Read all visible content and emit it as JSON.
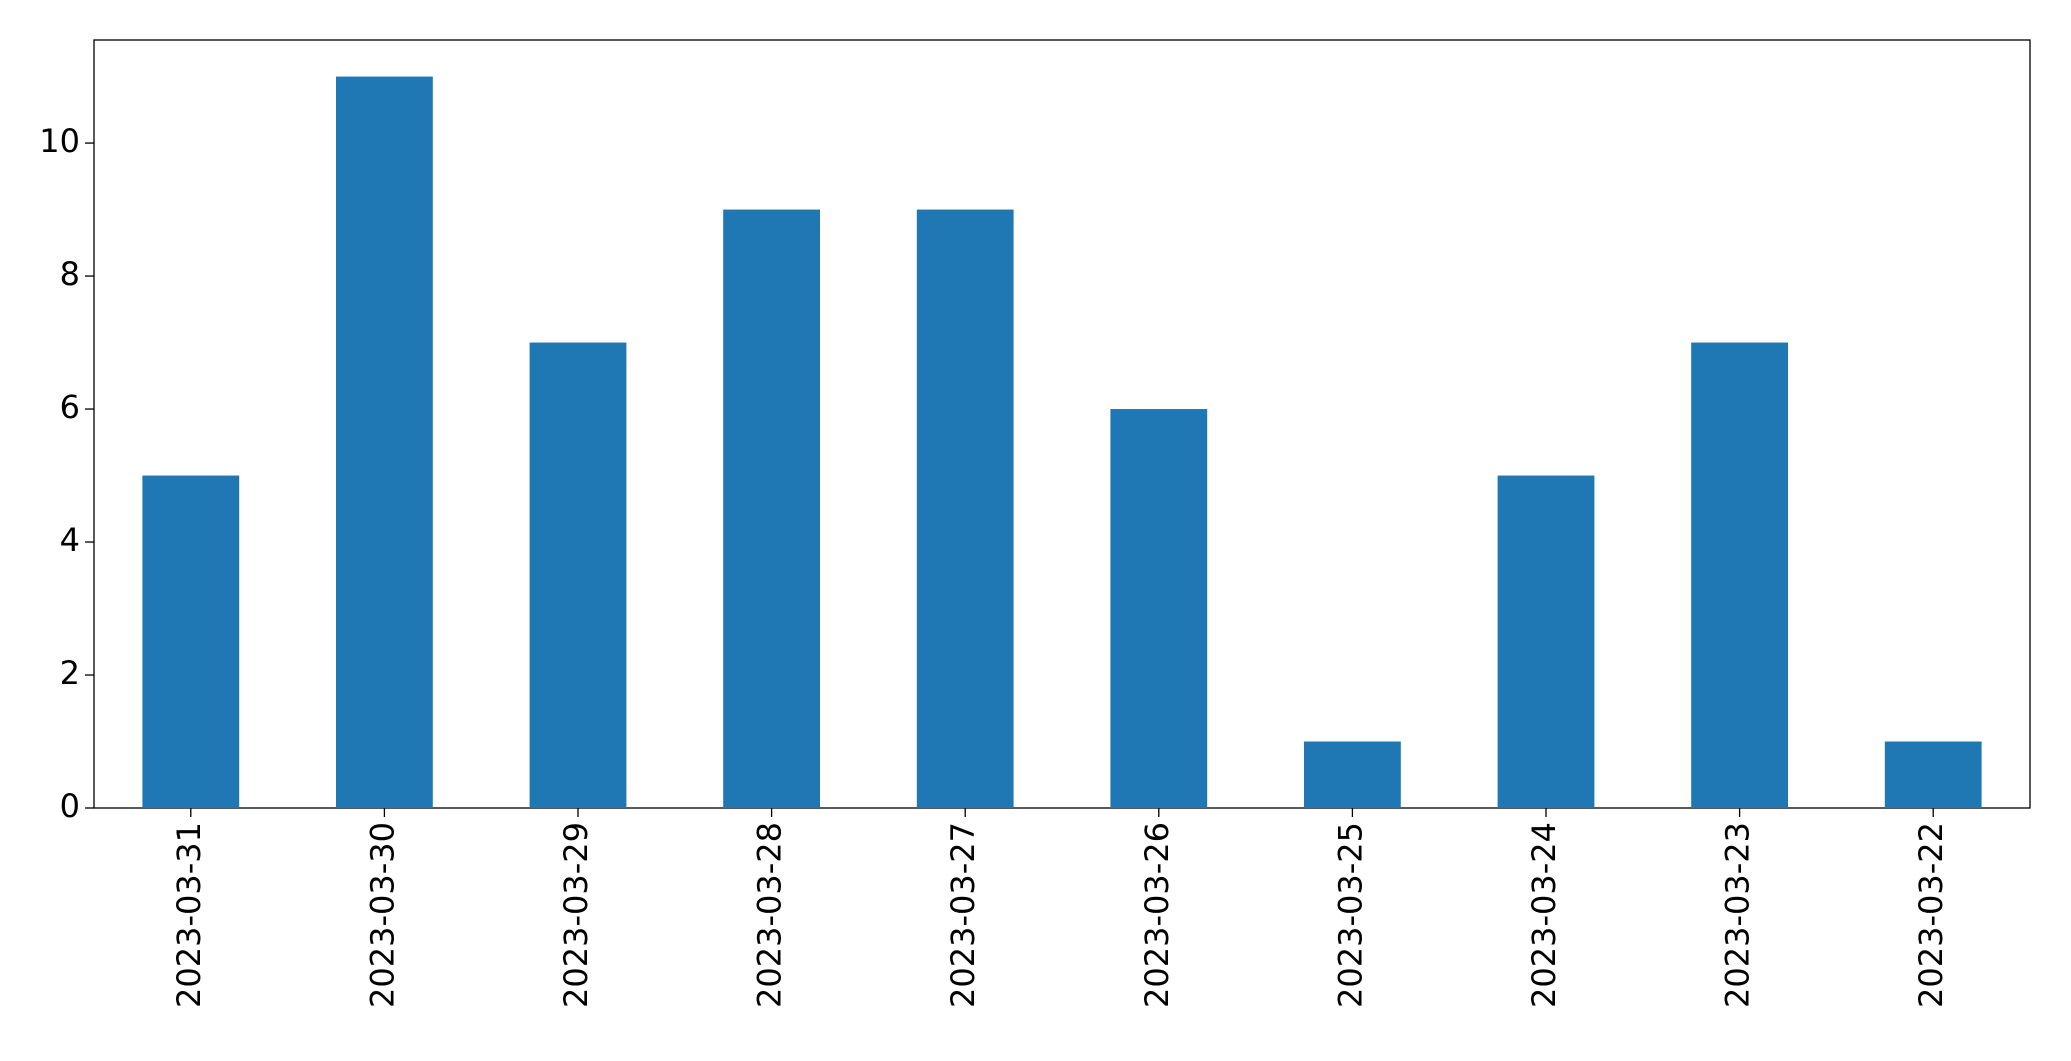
{
  "chart_data": {
    "type": "bar",
    "categories": [
      "2023-03-31",
      "2023-03-30",
      "2023-03-29",
      "2023-03-28",
      "2023-03-27",
      "2023-03-26",
      "2023-03-25",
      "2023-03-24",
      "2023-03-23",
      "2023-03-22"
    ],
    "values": [
      5,
      11,
      7,
      9,
      9,
      6,
      1,
      5,
      7,
      1
    ],
    "color": "#1f77b4",
    "ylim": [
      0,
      11.55
    ],
    "yticks": [
      0,
      2,
      4,
      6,
      8,
      10
    ],
    "grid": false
  }
}
